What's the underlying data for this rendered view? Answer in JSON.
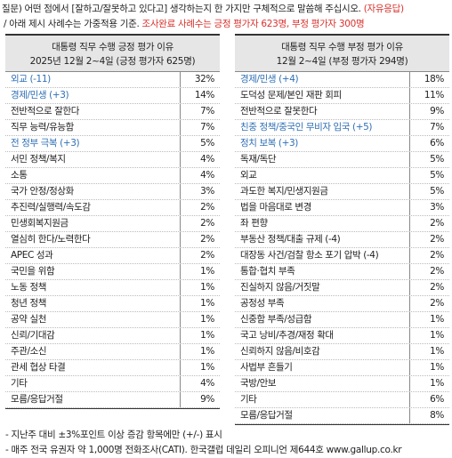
{
  "question": {
    "prefix": "질문) 어떤 점에서 [잘하고/잘못하고 있다고] 생각하는지 한 가지만 구체적으로 말씀해 주십시오. ",
    "tag": "(자유응답)",
    "line2_prefix": "/ 아래 제시 사례수는 가중적용 기준. ",
    "line2_red": "조사완료 사례수는 긍정 평가자 623명, 부정 평가자 300명"
  },
  "positive": {
    "title": "대통령 직무 수행 긍정 평가 이유",
    "subtitle": "2025년 12월 2~4일 (긍정 평가자 625명)",
    "rows": [
      {
        "label": "외교 (-11)",
        "value": "32%",
        "blue": true
      },
      {
        "label": "경제/민생 (+3)",
        "value": "14%",
        "blue": true
      },
      {
        "label": "전반적으로 잘한다",
        "value": "7%",
        "blue": false
      },
      {
        "label": "직무 능력/유능함",
        "value": "7%",
        "blue": false
      },
      {
        "label": "전 정부 극복 (+3)",
        "value": "5%",
        "blue": true
      },
      {
        "label": "서민 정책/복지",
        "value": "4%",
        "blue": false
      },
      {
        "label": "소통",
        "value": "4%",
        "blue": false
      },
      {
        "label": "국가 안정/정상화",
        "value": "3%",
        "blue": false
      },
      {
        "label": "추진력/실행력/속도감",
        "value": "2%",
        "blue": false
      },
      {
        "label": "민생회복지원금",
        "value": "2%",
        "blue": false
      },
      {
        "label": "열심히 한다/노력한다",
        "value": "2%",
        "blue": false
      },
      {
        "label": "APEC 성과",
        "value": "2%",
        "blue": false
      },
      {
        "label": "국민을 위함",
        "value": "1%",
        "blue": false
      },
      {
        "label": "노동 정책",
        "value": "1%",
        "blue": false
      },
      {
        "label": "청년 정책",
        "value": "1%",
        "blue": false
      },
      {
        "label": "공약 실천",
        "value": "1%",
        "blue": false
      },
      {
        "label": "신뢰/기대감",
        "value": "1%",
        "blue": false
      },
      {
        "label": "주관/소신",
        "value": "1%",
        "blue": false
      },
      {
        "label": "관세 협상 타결",
        "value": "1%",
        "blue": false
      },
      {
        "label": "기타",
        "value": "4%",
        "blue": false
      },
      {
        "label": "모름/응답거절",
        "value": "9%",
        "blue": false
      }
    ]
  },
  "negative": {
    "title": "대통령 직무 수행 부정 평가 이유",
    "subtitle": "12월 2~4일 (부정 평가자 294명)",
    "rows": [
      {
        "label": "경제/민생 (+4)",
        "value": "18%",
        "blue": true
      },
      {
        "label": "도덕성 문제/본인 재판 회피",
        "value": "11%",
        "blue": false
      },
      {
        "label": "전반적으로 잘못한다",
        "value": "9%",
        "blue": false
      },
      {
        "label": "친중 정책/중국인 무비자 입국 (+5)",
        "value": "7%",
        "blue": true
      },
      {
        "label": "정치 보복 (+3)",
        "value": "6%",
        "blue": true
      },
      {
        "label": "독재/독단",
        "value": "5%",
        "blue": false
      },
      {
        "label": "외교",
        "value": "5%",
        "blue": false
      },
      {
        "label": "과도한 복지/민생지원금",
        "value": "5%",
        "blue": false
      },
      {
        "label": "법을 마음대로 변경",
        "value": "3%",
        "blue": false
      },
      {
        "label": "좌 편향",
        "value": "2%",
        "blue": false
      },
      {
        "label": "부동산 정책/대출 규제 (-4)",
        "value": "2%",
        "blue": false
      },
      {
        "label": "대장동 사건/검찰 항소 포기 압박 (-4)",
        "value": "2%",
        "blue": false
      },
      {
        "label": "통합·협치 부족",
        "value": "2%",
        "blue": false
      },
      {
        "label": "진실하지 않음/거짓말",
        "value": "2%",
        "blue": false
      },
      {
        "label": "공정성 부족",
        "value": "2%",
        "blue": false
      },
      {
        "label": "신중함 부족/성급함",
        "value": "1%",
        "blue": false
      },
      {
        "label": "국고 낭비/추경/재정 확대",
        "value": "1%",
        "blue": false
      },
      {
        "label": "신뢰하지 않음/비호감",
        "value": "1%",
        "blue": false
      },
      {
        "label": "사법부 흔들기",
        "value": "1%",
        "blue": false
      },
      {
        "label": "국방/안보",
        "value": "1%",
        "blue": false
      },
      {
        "label": "기타",
        "value": "6%",
        "blue": false
      },
      {
        "label": "모름/응답거절",
        "value": "8%",
        "blue": false
      }
    ]
  },
  "notes": [
    "- 지난주 대비 ±3%포인트 이상 증감 항목에만 (+/-) 표시",
    "- 매주 전국 유권자 약 1,000명 전화조사(CATI). 한국갤럽 데일리 오피니언 제644호 www.gallup.co.kr"
  ]
}
